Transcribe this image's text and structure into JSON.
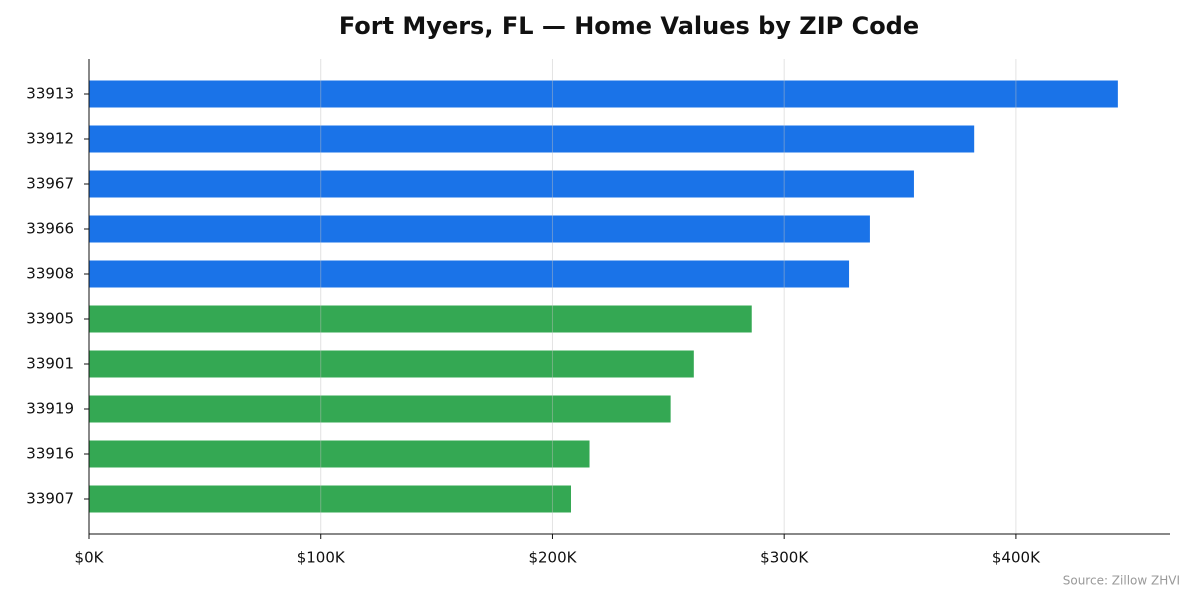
{
  "chart_data": {
    "type": "barh",
    "title": "Fort Myers, FL — Home Values by ZIP Code",
    "categories": [
      "33913",
      "33912",
      "33967",
      "33966",
      "33908",
      "33905",
      "33901",
      "33919",
      "33916",
      "33907"
    ],
    "values": [
      444000,
      382000,
      356000,
      337000,
      328000,
      286000,
      261000,
      251000,
      216000,
      208000
    ],
    "colors": [
      "#1a73e8",
      "#1a73e8",
      "#1a73e8",
      "#1a73e8",
      "#1a73e8",
      "#34a853",
      "#34a853",
      "#34a853",
      "#34a853",
      "#34a853"
    ],
    "xlim": [
      0,
      466500
    ],
    "xticks": [
      {
        "value": 0,
        "label": "$0K"
      },
      {
        "value": 100000,
        "label": "$100K"
      },
      {
        "value": 200000,
        "label": "$200K"
      },
      {
        "value": 300000,
        "label": "$300K"
      },
      {
        "value": 400000,
        "label": "$400K"
      }
    ],
    "grid": true,
    "annotation": "Source: Zillow ZHVI"
  }
}
